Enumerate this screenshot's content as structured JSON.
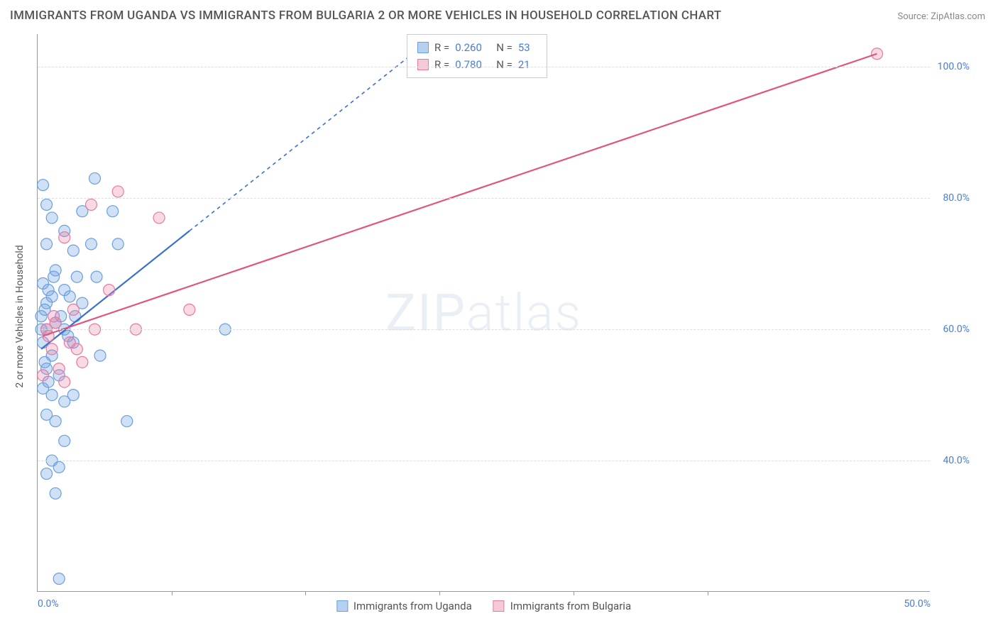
{
  "title": "IMMIGRANTS FROM UGANDA VS IMMIGRANTS FROM BULGARIA 2 OR MORE VEHICLES IN HOUSEHOLD CORRELATION CHART",
  "source": "Source: ZipAtlas.com",
  "y_axis_label": "2 or more Vehicles in Household",
  "watermark_bold": "ZIP",
  "watermark_light": "atlas",
  "chart": {
    "type": "scatter",
    "x_domain": [
      0,
      50
    ],
    "y_domain": [
      20,
      105
    ],
    "x_ticks": [
      0.0,
      50.0
    ],
    "x_minor_ticks": [
      7.5,
      15,
      22.5,
      30,
      37.5
    ],
    "y_ticks": [
      40.0,
      60.0,
      80.0,
      100.0
    ],
    "y_tick_labels": [
      "40.0%",
      "60.0%",
      "80.0%",
      "100.0%"
    ],
    "x_tick_labels": [
      "0.0%",
      "50.0%"
    ],
    "grid_color": "#ddd",
    "series": [
      {
        "name": "Immigrants from Uganda",
        "swatch_fill": "#b6d0ef",
        "swatch_stroke": "#6a9fe0",
        "marker_fill": "rgba(120,165,225,0.35)",
        "marker_stroke": "#6a9fe0",
        "line_color": "#3a6fd0",
        "r_value": "0.260",
        "n_value": "53",
        "regression_solid": {
          "x1": 0.2,
          "y1": 57,
          "x2": 8.5,
          "y2": 75
        },
        "regression_dashed": {
          "x1": 8.5,
          "y1": 75,
          "x2": 21,
          "y2": 102
        },
        "points": [
          [
            0.3,
            82
          ],
          [
            0.5,
            79
          ],
          [
            3.2,
            83
          ],
          [
            4.2,
            78
          ],
          [
            0.8,
            77
          ],
          [
            2.5,
            78
          ],
          [
            1.5,
            75
          ],
          [
            0.5,
            73
          ],
          [
            2.0,
            72
          ],
          [
            3.0,
            73
          ],
          [
            4.5,
            73
          ],
          [
            1.0,
            69
          ],
          [
            2.2,
            68
          ],
          [
            0.3,
            67
          ],
          [
            1.5,
            66
          ],
          [
            0.8,
            65
          ],
          [
            1.8,
            65
          ],
          [
            0.5,
            64
          ],
          [
            2.5,
            64
          ],
          [
            0.2,
            62
          ],
          [
            1.0,
            61
          ],
          [
            0.5,
            60
          ],
          [
            1.5,
            60
          ],
          [
            0.3,
            58
          ],
          [
            2.0,
            58
          ],
          [
            0.8,
            56
          ],
          [
            3.5,
            56
          ],
          [
            10.5,
            60
          ],
          [
            0.5,
            54
          ],
          [
            1.2,
            53
          ],
          [
            0.3,
            51
          ],
          [
            0.8,
            50
          ],
          [
            1.5,
            49
          ],
          [
            2.0,
            50
          ],
          [
            0.5,
            47
          ],
          [
            1.0,
            46
          ],
          [
            5.0,
            46
          ],
          [
            1.5,
            43
          ],
          [
            0.8,
            40
          ],
          [
            1.2,
            39
          ],
          [
            0.5,
            38
          ],
          [
            1.0,
            35
          ],
          [
            1.2,
            22
          ],
          [
            0.2,
            60
          ],
          [
            0.4,
            63
          ],
          [
            0.6,
            66
          ],
          [
            0.9,
            68
          ],
          [
            1.3,
            62
          ],
          [
            1.7,
            59
          ],
          [
            0.4,
            55
          ],
          [
            0.6,
            52
          ],
          [
            3.3,
            68
          ],
          [
            2.1,
            62
          ]
        ]
      },
      {
        "name": "Immigrants from Bulgaria",
        "swatch_fill": "#f6c9d6",
        "swatch_stroke": "#e77aa0",
        "marker_fill": "rgba(235,130,165,0.30)",
        "marker_stroke": "#e77aa0",
        "line_color": "#e0557f",
        "r_value": "0.780",
        "n_value": "21",
        "regression_solid": {
          "x1": 0.3,
          "y1": 59,
          "x2": 47,
          "y2": 102
        },
        "regression_dashed": null,
        "points": [
          [
            47,
            102
          ],
          [
            4.5,
            81
          ],
          [
            6.8,
            77
          ],
          [
            3.0,
            79
          ],
          [
            1.5,
            74
          ],
          [
            4.0,
            66
          ],
          [
            8.5,
            63
          ],
          [
            5.5,
            60
          ],
          [
            2.0,
            63
          ],
          [
            1.0,
            61
          ],
          [
            0.5,
            60
          ],
          [
            1.8,
            58
          ],
          [
            0.8,
            57
          ],
          [
            2.5,
            55
          ],
          [
            1.2,
            54
          ],
          [
            0.3,
            53
          ],
          [
            1.5,
            52
          ],
          [
            0.6,
            59
          ],
          [
            3.2,
            60
          ],
          [
            2.2,
            57
          ],
          [
            0.9,
            62
          ]
        ]
      }
    ]
  },
  "legend_labels": {
    "r_prefix": "R =",
    "n_prefix": "N ="
  }
}
